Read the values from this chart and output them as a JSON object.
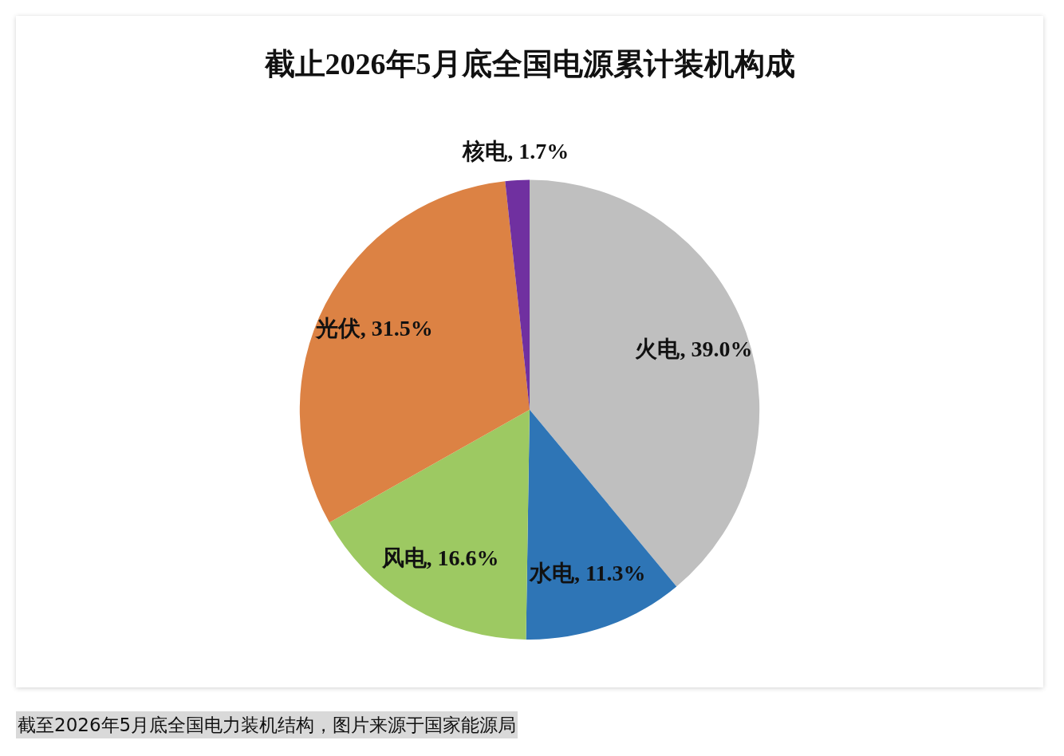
{
  "chart_data": {
    "type": "pie",
    "title": "截止2026年5月底全国电源累计装机构成",
    "categories": [
      "火电",
      "水电",
      "风电",
      "光伏",
      "核电"
    ],
    "values": [
      39.0,
      11.3,
      16.6,
      31.5,
      1.7
    ],
    "colors": [
      "#bfbfbf",
      "#2e75b6",
      "#9dc962",
      "#dc8244",
      "#7030a0"
    ],
    "value_labels": [
      ", 39.0%",
      ", 11.3%",
      ", 16.6%",
      ", 31.5%",
      ", 1.7%"
    ],
    "annotations": [
      "截至2026年5月底全国电力装机结构，图片来源于国家能源局"
    ]
  }
}
